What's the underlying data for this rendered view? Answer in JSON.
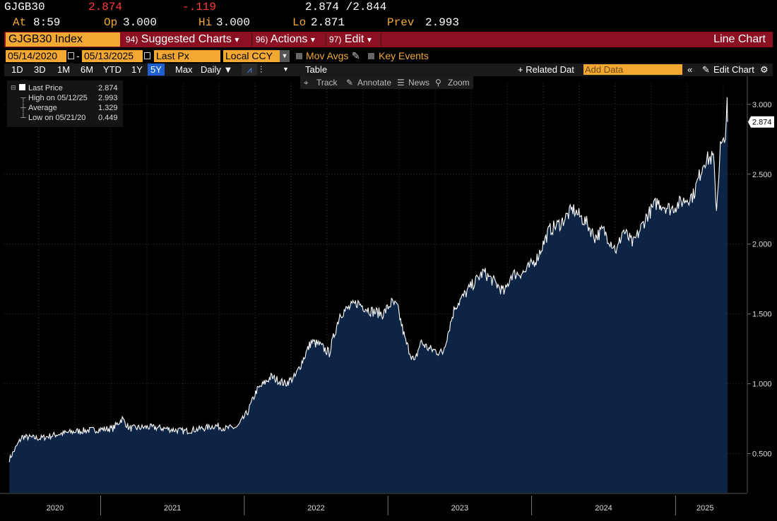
{
  "quote": {
    "ticker": "GJGB30",
    "last": "2.874",
    "change": "-.119",
    "bid_ask": "2.874 /2.844",
    "at_label": "At",
    "time": "8:59",
    "open_label": "Op",
    "open": "3.000",
    "high_label": "Hi",
    "high": "3.000",
    "low_label": "Lo",
    "low": "2.871",
    "prev_label": "Prev",
    "prev": "2.993"
  },
  "menu": {
    "security": "GJGB30 Index",
    "items": [
      {
        "num": "94)",
        "label": "Suggested Charts",
        "caret": "▾"
      },
      {
        "num": "96)",
        "label": "Actions",
        "caret": "▾"
      },
      {
        "num": "97)",
        "label": "Edit",
        "caret": "▾"
      }
    ],
    "chart_type": "Line Chart"
  },
  "settings": {
    "start_date": "05/14/2020",
    "end_date": "05/13/2025",
    "field": "Last Px",
    "currency": "Local CCY",
    "mov_avgs": "Mov Avgs",
    "key_events": "Key Events"
  },
  "ranges": {
    "items": [
      "1D",
      "3D",
      "1M",
      "6M",
      "YTD",
      "1Y",
      "5Y",
      "Max"
    ],
    "selected": "5Y",
    "frequency": "Daily ▼",
    "table": "Table",
    "related": "+ Related Dat",
    "add_data_placeholder": "Add Data",
    "edit_chart": "Edit Chart"
  },
  "toolbar": {
    "track": "Track",
    "annotate": "Annotate",
    "news": "News",
    "zoom": "Zoom"
  },
  "legend": {
    "last_label": "Last Price",
    "last_value": "2.874",
    "high_label": "High on 05/12/25",
    "high_value": "2.993",
    "avg_label": "Average",
    "avg_value": "1.329",
    "low_label": "Low on 05/21/20",
    "low_value": "0.449"
  },
  "colors": {
    "background": "#000000",
    "area_fill": "#0d2445",
    "line": "#ffffff",
    "accent": "#f2a833",
    "negative": "#ff3b3b",
    "menu_bar": "#8c1022"
  },
  "chart_data": {
    "type": "area",
    "title": "",
    "xlabel": "",
    "ylabel": "",
    "x": [
      "2020-05-14",
      "2020-06-15",
      "2020-08-01",
      "2020-09-15",
      "2020-11-01",
      "2020-12-15",
      "2021-02-01",
      "2021-02-25",
      "2021-03-15",
      "2021-05-01",
      "2021-06-15",
      "2021-08-01",
      "2021-09-15",
      "2021-10-20",
      "2021-11-15",
      "2021-12-15",
      "2022-01-10",
      "2022-02-01",
      "2022-03-10",
      "2022-04-15",
      "2022-05-10",
      "2022-06-20",
      "2022-07-10",
      "2022-08-05",
      "2022-09-01",
      "2022-10-15",
      "2022-11-20",
      "2022-12-20",
      "2023-01-10",
      "2023-01-25",
      "2023-02-15",
      "2023-03-10",
      "2023-03-25",
      "2023-04-15",
      "2023-05-20",
      "2023-06-20",
      "2023-07-10",
      "2023-08-01",
      "2023-09-01",
      "2023-10-01",
      "2023-10-25",
      "2023-11-10",
      "2023-12-15",
      "2024-01-15",
      "2024-02-15",
      "2024-03-15",
      "2024-04-15",
      "2024-05-20",
      "2024-06-10",
      "2024-07-01",
      "2024-08-05",
      "2024-08-20",
      "2024-09-15",
      "2024-10-20",
      "2024-11-15",
      "2024-12-20",
      "2025-01-15",
      "2025-02-15",
      "2025-03-15",
      "2025-04-07",
      "2025-04-15",
      "2025-04-25",
      "2025-05-05",
      "2025-05-12",
      "2025-05-13"
    ],
    "values": [
      0.46,
      0.62,
      0.61,
      0.64,
      0.66,
      0.67,
      0.68,
      0.75,
      0.68,
      0.69,
      0.68,
      0.66,
      0.68,
      0.7,
      0.68,
      0.69,
      0.8,
      0.95,
      1.05,
      1.0,
      1.05,
      1.3,
      1.28,
      1.22,
      1.5,
      1.58,
      1.52,
      1.5,
      1.58,
      1.55,
      1.3,
      1.15,
      1.3,
      1.25,
      1.22,
      1.55,
      1.62,
      1.7,
      1.8,
      1.72,
      1.65,
      1.78,
      1.8,
      1.9,
      2.1,
      2.15,
      2.25,
      2.15,
      2.05,
      2.1,
      1.95,
      2.1,
      2.0,
      2.2,
      2.3,
      2.25,
      2.3,
      2.35,
      2.6,
      2.62,
      2.25,
      2.7,
      2.72,
      2.99,
      2.874
    ],
    "ylim": [
      0.22,
      3.1
    ],
    "y_ticks": [
      "3.000",
      "2.500",
      "2.000",
      "1.500",
      "1.000",
      "0.500"
    ],
    "x_ticks": [
      "2020",
      "2021",
      "2022",
      "2023",
      "2024",
      "2025"
    ],
    "last_value_label": "2.874",
    "grid": true
  }
}
